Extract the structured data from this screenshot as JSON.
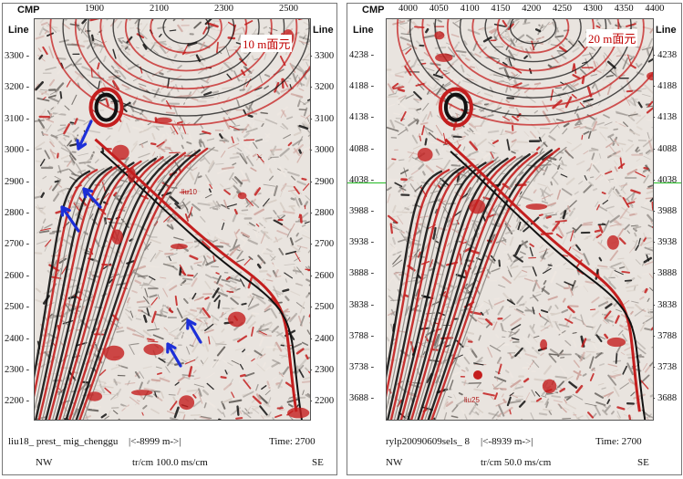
{
  "panels": [
    {
      "id": "left",
      "cmp_label": "CMP",
      "line_label": "Line",
      "cmp_ticks": [
        "1900",
        "2100",
        "2300",
        "2500"
      ],
      "line_ticks": [
        "3300",
        "3200",
        "3100",
        "3000",
        "2900",
        "2800",
        "2700",
        "2600",
        "2500",
        "2400",
        "2300",
        "2200"
      ],
      "bin_label": "10 m面元",
      "annotation": "liu10",
      "footer": {
        "dataset": "liu18_ prest_ mig_chenggu",
        "distance": "|<-8999 m->|",
        "time": "Time: 2700",
        "dir_left": "NW",
        "scale": "tr/cm 100.0 ms/cm",
        "dir_right": "SE"
      }
    },
    {
      "id": "right",
      "cmp_label": "CMP",
      "line_label": "Line",
      "cmp_ticks": [
        "4000",
        "4050",
        "4100",
        "4150",
        "4200",
        "4250",
        "4300",
        "4350",
        "4400"
      ],
      "line_ticks": [
        "4238",
        "4188",
        "4138",
        "4088",
        "4038",
        "3988",
        "3938",
        "3888",
        "3838",
        "3788",
        "3738",
        "3688"
      ],
      "bin_label": "20 m面元",
      "annotation": "liu25",
      "footer": {
        "dataset": "rylp20090609sels_ 8",
        "distance": "|<-8939 m->|",
        "time": "Time: 2700",
        "dir_left": "NW",
        "scale": "tr/cm 50.0 ms/cm",
        "dir_right": "SE"
      }
    }
  ],
  "colors": {
    "peak": "#c41e1e",
    "trough": "#111111",
    "background": "#e9e4df",
    "arrow": "#1c2fd8",
    "marker_line": "#22bb22",
    "bin_label": "#c00000"
  },
  "chart_data": [
    {
      "type": "heatmap",
      "title": "",
      "x_axis": {
        "label": "CMP",
        "ticks": [
          1900,
          2100,
          2300,
          2500
        ]
      },
      "y_axis": {
        "label": "Line",
        "ticks": [
          3300,
          3200,
          3100,
          3000,
          2900,
          2800,
          2700,
          2600,
          2500,
          2400,
          2300,
          2200
        ]
      },
      "annotations": [
        "10 m面元",
        "liu10"
      ]
    },
    {
      "type": "heatmap",
      "title": "",
      "x_axis": {
        "label": "CMP",
        "ticks": [
          4000,
          4050,
          4100,
          4150,
          4200,
          4250,
          4300,
          4350,
          4400
        ]
      },
      "y_axis": {
        "label": "Line",
        "ticks": [
          4238,
          4188,
          4138,
          4088,
          4038,
          3988,
          3938,
          3888,
          3838,
          3788,
          3738,
          3688
        ]
      },
      "annotations": [
        "20 m面元",
        "liu25"
      ]
    }
  ]
}
